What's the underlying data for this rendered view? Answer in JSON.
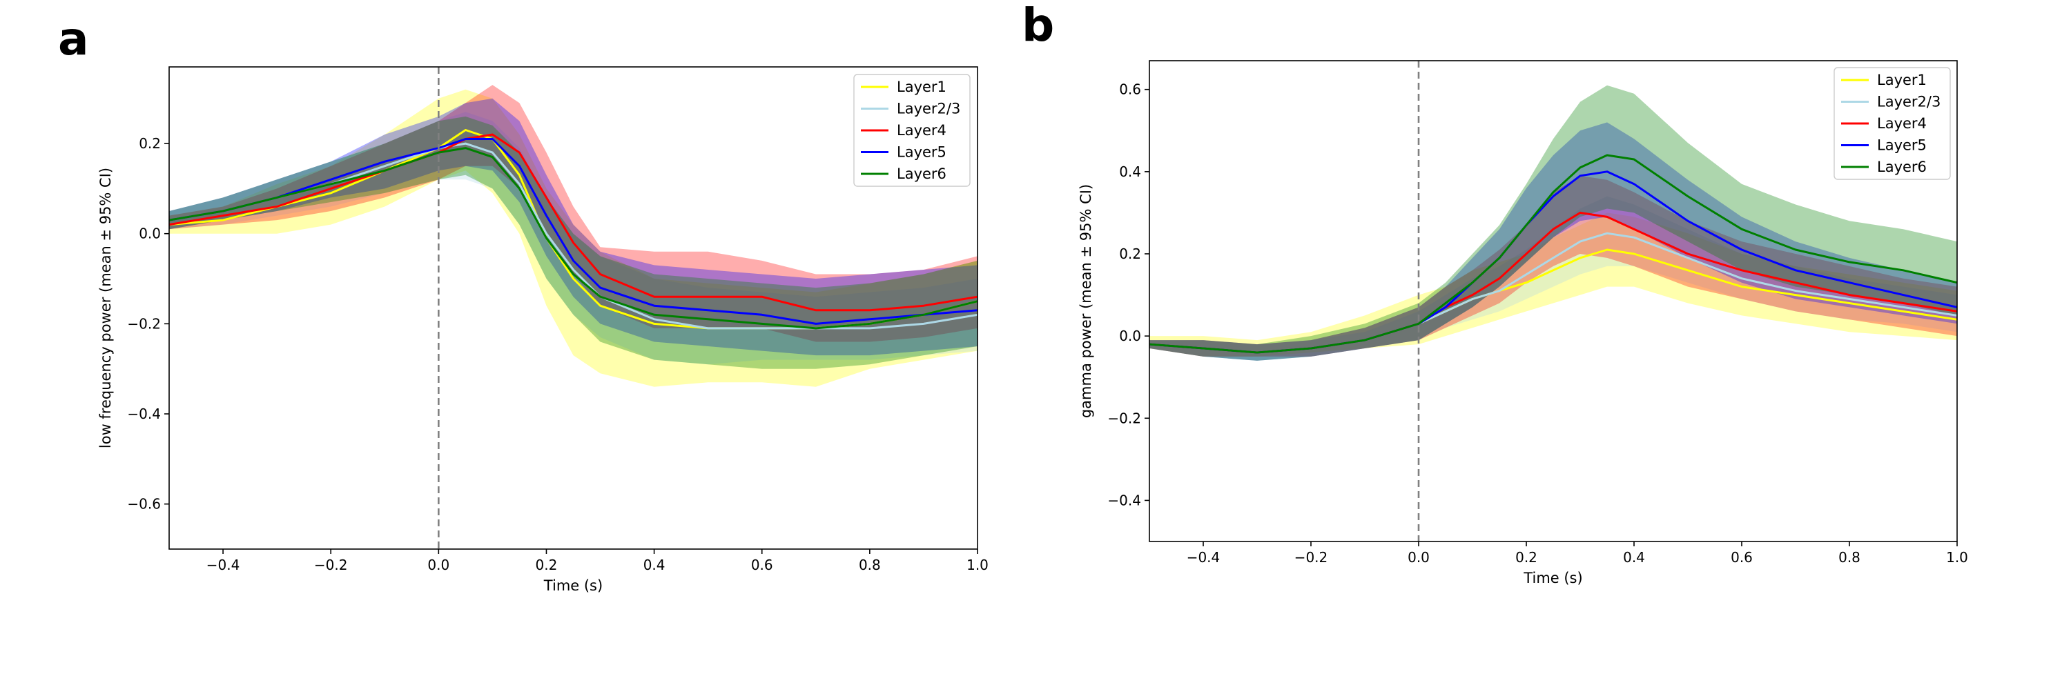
{
  "panels": {
    "a": "a",
    "b": "b"
  },
  "chart_data": [
    {
      "id": "a",
      "type": "line",
      "title": "",
      "xlabel": "Time (s)",
      "ylabel": "low frequency power (mean ± 95% CI)",
      "xlim": [
        -0.5,
        1.0
      ],
      "ylim": [
        -0.7,
        0.37
      ],
      "xticks": [
        -0.4,
        -0.2,
        0.0,
        0.2,
        0.4,
        0.6,
        0.8,
        1.0
      ],
      "xtick_labels": [
        "−0.4",
        "−0.2",
        "0.0",
        "0.2",
        "0.4",
        "0.6",
        "0.8",
        "1.0"
      ],
      "yticks": [
        0.2,
        0.0,
        -0.2,
        -0.4,
        -0.6
      ],
      "ytick_labels": [
        "0.2",
        "0.0",
        "−0.2",
        "−0.4",
        "−0.6"
      ],
      "vline_x": 0.0,
      "legend_position": "top-right",
      "x": [
        -0.5,
        -0.4,
        -0.3,
        -0.2,
        -0.1,
        0.0,
        0.05,
        0.1,
        0.15,
        0.2,
        0.25,
        0.3,
        0.4,
        0.5,
        0.6,
        0.7,
        0.8,
        0.9,
        1.0
      ],
      "series": [
        {
          "name": "Layer1",
          "color": "#ffff00",
          "mean": [
            0.02,
            0.03,
            0.06,
            0.09,
            0.14,
            0.19,
            0.23,
            0.21,
            0.13,
            -0.01,
            -0.1,
            -0.16,
            -0.2,
            -0.21,
            -0.21,
            -0.21,
            -0.2,
            -0.18,
            -0.15
          ],
          "lower": [
            0.0,
            0.0,
            0.0,
            0.02,
            0.06,
            0.12,
            0.14,
            0.09,
            0.0,
            -0.16,
            -0.27,
            -0.31,
            -0.34,
            -0.33,
            -0.33,
            -0.34,
            -0.3,
            -0.28,
            -0.26
          ],
          "upper": [
            0.04,
            0.06,
            0.11,
            0.15,
            0.22,
            0.3,
            0.32,
            0.3,
            0.22,
            0.1,
            0.02,
            -0.04,
            -0.1,
            -0.11,
            -0.12,
            -0.13,
            -0.11,
            -0.09,
            -0.06
          ]
        },
        {
          "name": "Layer2/3",
          "color": "#add8e6",
          "mean": [
            0.03,
            0.05,
            0.08,
            0.11,
            0.15,
            0.19,
            0.2,
            0.18,
            0.11,
            0.0,
            -0.08,
            -0.14,
            -0.19,
            -0.21,
            -0.21,
            -0.21,
            -0.21,
            -0.2,
            -0.18
          ],
          "lower": [
            0.01,
            0.02,
            0.04,
            0.06,
            0.09,
            0.12,
            0.12,
            0.1,
            0.02,
            -0.1,
            -0.18,
            -0.23,
            -0.28,
            -0.29,
            -0.28,
            -0.28,
            -0.28,
            -0.27,
            -0.26
          ],
          "upper": [
            0.05,
            0.08,
            0.12,
            0.16,
            0.2,
            0.25,
            0.27,
            0.25,
            0.19,
            0.08,
            0.0,
            -0.05,
            -0.1,
            -0.12,
            -0.13,
            -0.14,
            -0.13,
            -0.12,
            -0.1
          ]
        },
        {
          "name": "Layer4",
          "color": "#ff0000",
          "mean": [
            0.02,
            0.04,
            0.06,
            0.1,
            0.14,
            0.18,
            0.21,
            0.22,
            0.18,
            0.08,
            -0.02,
            -0.09,
            -0.14,
            -0.14,
            -0.14,
            -0.17,
            -0.17,
            -0.16,
            -0.14
          ],
          "lower": [
            0.01,
            0.02,
            0.03,
            0.05,
            0.08,
            0.12,
            0.15,
            0.15,
            0.1,
            0.0,
            -0.09,
            -0.16,
            -0.21,
            -0.21,
            -0.21,
            -0.24,
            -0.24,
            -0.23,
            -0.21
          ],
          "upper": [
            0.04,
            0.06,
            0.1,
            0.15,
            0.2,
            0.25,
            0.29,
            0.33,
            0.29,
            0.18,
            0.06,
            -0.03,
            -0.04,
            -0.04,
            -0.06,
            -0.09,
            -0.09,
            -0.08,
            -0.05
          ]
        },
        {
          "name": "Layer5",
          "color": "#0000ff",
          "mean": [
            0.03,
            0.05,
            0.08,
            0.12,
            0.16,
            0.19,
            0.21,
            0.21,
            0.15,
            0.04,
            -0.06,
            -0.12,
            -0.16,
            -0.17,
            -0.18,
            -0.2,
            -0.19,
            -0.18,
            -0.17
          ],
          "lower": [
            0.01,
            0.03,
            0.05,
            0.08,
            0.1,
            0.14,
            0.15,
            0.14,
            0.07,
            -0.05,
            -0.14,
            -0.2,
            -0.24,
            -0.25,
            -0.26,
            -0.27,
            -0.27,
            -0.26,
            -0.25
          ],
          "upper": [
            0.05,
            0.08,
            0.12,
            0.16,
            0.22,
            0.26,
            0.29,
            0.3,
            0.25,
            0.13,
            0.02,
            -0.04,
            -0.07,
            -0.08,
            -0.09,
            -0.1,
            -0.09,
            -0.08,
            -0.07
          ]
        },
        {
          "name": "Layer6",
          "color": "#008000",
          "mean": [
            0.03,
            0.05,
            0.08,
            0.11,
            0.14,
            0.18,
            0.19,
            0.17,
            0.1,
            -0.01,
            -0.09,
            -0.14,
            -0.18,
            -0.19,
            -0.2,
            -0.21,
            -0.2,
            -0.18,
            -0.15
          ],
          "lower": [
            0.01,
            0.03,
            0.05,
            0.07,
            0.09,
            0.12,
            0.13,
            0.1,
            0.02,
            -0.1,
            -0.18,
            -0.24,
            -0.28,
            -0.29,
            -0.3,
            -0.3,
            -0.29,
            -0.27,
            -0.25
          ],
          "upper": [
            0.05,
            0.08,
            0.12,
            0.16,
            0.2,
            0.25,
            0.26,
            0.24,
            0.18,
            0.08,
            0.0,
            -0.05,
            -0.09,
            -0.1,
            -0.11,
            -0.12,
            -0.11,
            -0.09,
            -0.06
          ]
        }
      ]
    },
    {
      "id": "b",
      "type": "line",
      "title": "",
      "xlabel": "Time (s)",
      "ylabel": "gamma power (mean ± 95% CI)",
      "xlim": [
        -0.5,
        1.0
      ],
      "ylim": [
        -0.5,
        0.67
      ],
      "xticks": [
        -0.4,
        -0.2,
        0.0,
        0.2,
        0.4,
        0.6,
        0.8,
        1.0
      ],
      "xtick_labels": [
        "−0.4",
        "−0.2",
        "0.0",
        "0.2",
        "0.4",
        "0.6",
        "0.8",
        "1.0"
      ],
      "yticks": [
        0.6,
        0.4,
        0.2,
        0.0,
        -0.2,
        -0.4
      ],
      "ytick_labels": [
        "0.6",
        "0.4",
        "0.2",
        "0.0",
        "−0.2",
        "−0.4"
      ],
      "vline_x": 0.0,
      "legend_position": "top-right",
      "x": [
        -0.5,
        -0.4,
        -0.3,
        -0.2,
        -0.1,
        0.0,
        0.05,
        0.1,
        0.15,
        0.2,
        0.25,
        0.3,
        0.35,
        0.4,
        0.5,
        0.6,
        0.7,
        0.8,
        0.9,
        1.0
      ],
      "series": [
        {
          "name": "Layer1",
          "color": "#ffff00",
          "mean": [
            -0.02,
            -0.03,
            -0.04,
            -0.03,
            -0.01,
            0.03,
            0.06,
            0.09,
            0.11,
            0.13,
            0.16,
            0.19,
            0.21,
            0.2,
            0.16,
            0.12,
            0.1,
            0.08,
            0.06,
            0.04
          ],
          "lower": [
            -0.03,
            -0.05,
            -0.05,
            -0.04,
            -0.03,
            -0.02,
            0.0,
            0.02,
            0.04,
            0.06,
            0.08,
            0.1,
            0.12,
            0.12,
            0.08,
            0.05,
            0.03,
            0.01,
            0.0,
            -0.01
          ],
          "upper": [
            0.0,
            0.0,
            -0.01,
            0.01,
            0.05,
            0.1,
            0.12,
            0.16,
            0.18,
            0.2,
            0.24,
            0.27,
            0.3,
            0.29,
            0.25,
            0.2,
            0.17,
            0.15,
            0.13,
            0.11
          ]
        },
        {
          "name": "Layer2/3",
          "color": "#add8e6",
          "mean": [
            -0.02,
            -0.03,
            -0.04,
            -0.03,
            -0.01,
            0.03,
            0.06,
            0.09,
            0.11,
            0.15,
            0.19,
            0.23,
            0.25,
            0.24,
            0.19,
            0.14,
            0.11,
            0.09,
            0.07,
            0.05
          ],
          "lower": [
            -0.03,
            -0.05,
            -0.06,
            -0.05,
            -0.03,
            -0.01,
            0.02,
            0.04,
            0.06,
            0.09,
            0.12,
            0.15,
            0.17,
            0.17,
            0.13,
            0.09,
            0.06,
            0.04,
            0.03,
            0.01
          ],
          "upper": [
            -0.01,
            -0.01,
            -0.02,
            -0.01,
            0.01,
            0.06,
            0.1,
            0.14,
            0.17,
            0.21,
            0.26,
            0.31,
            0.34,
            0.32,
            0.26,
            0.2,
            0.17,
            0.14,
            0.12,
            0.1
          ]
        },
        {
          "name": "Layer4",
          "color": "#ff0000",
          "mean": [
            -0.02,
            -0.03,
            -0.04,
            -0.03,
            -0.01,
            0.03,
            0.07,
            0.1,
            0.14,
            0.2,
            0.26,
            0.3,
            0.29,
            0.26,
            0.2,
            0.16,
            0.13,
            0.1,
            0.08,
            0.06
          ],
          "lower": [
            -0.03,
            -0.05,
            -0.05,
            -0.05,
            -0.03,
            -0.01,
            0.02,
            0.05,
            0.08,
            0.13,
            0.17,
            0.2,
            0.19,
            0.17,
            0.12,
            0.09,
            0.06,
            0.04,
            0.02,
            0.0
          ],
          "upper": [
            -0.01,
            -0.01,
            -0.02,
            -0.01,
            0.02,
            0.07,
            0.12,
            0.16,
            0.21,
            0.27,
            0.35,
            0.39,
            0.38,
            0.35,
            0.28,
            0.23,
            0.2,
            0.17,
            0.14,
            0.12
          ]
        },
        {
          "name": "Layer5",
          "color": "#0000ff",
          "mean": [
            -0.02,
            -0.03,
            -0.04,
            -0.03,
            -0.01,
            0.03,
            0.07,
            0.13,
            0.19,
            0.27,
            0.34,
            0.39,
            0.4,
            0.37,
            0.28,
            0.21,
            0.16,
            0.13,
            0.1,
            0.07
          ],
          "lower": [
            -0.03,
            -0.05,
            -0.06,
            -0.05,
            -0.03,
            -0.01,
            0.03,
            0.07,
            0.12,
            0.18,
            0.24,
            0.28,
            0.29,
            0.26,
            0.19,
            0.13,
            0.09,
            0.07,
            0.05,
            0.03
          ],
          "upper": [
            -0.01,
            -0.01,
            -0.02,
            -0.01,
            0.02,
            0.07,
            0.12,
            0.19,
            0.26,
            0.36,
            0.44,
            0.5,
            0.52,
            0.48,
            0.38,
            0.29,
            0.23,
            0.19,
            0.16,
            0.13
          ]
        },
        {
          "name": "Layer6",
          "color": "#008000",
          "mean": [
            -0.02,
            -0.03,
            -0.04,
            -0.03,
            -0.01,
            0.03,
            0.08,
            0.13,
            0.19,
            0.27,
            0.35,
            0.41,
            0.44,
            0.43,
            0.34,
            0.26,
            0.21,
            0.18,
            0.16,
            0.13
          ],
          "lower": [
            -0.03,
            -0.05,
            -0.06,
            -0.05,
            -0.03,
            -0.01,
            0.03,
            0.07,
            0.12,
            0.18,
            0.24,
            0.29,
            0.31,
            0.3,
            0.23,
            0.16,
            0.12,
            0.1,
            0.08,
            0.05
          ],
          "upper": [
            -0.01,
            -0.01,
            -0.02,
            0.0,
            0.03,
            0.08,
            0.13,
            0.2,
            0.27,
            0.37,
            0.48,
            0.57,
            0.61,
            0.59,
            0.47,
            0.37,
            0.32,
            0.28,
            0.26,
            0.23
          ]
        }
      ]
    }
  ]
}
